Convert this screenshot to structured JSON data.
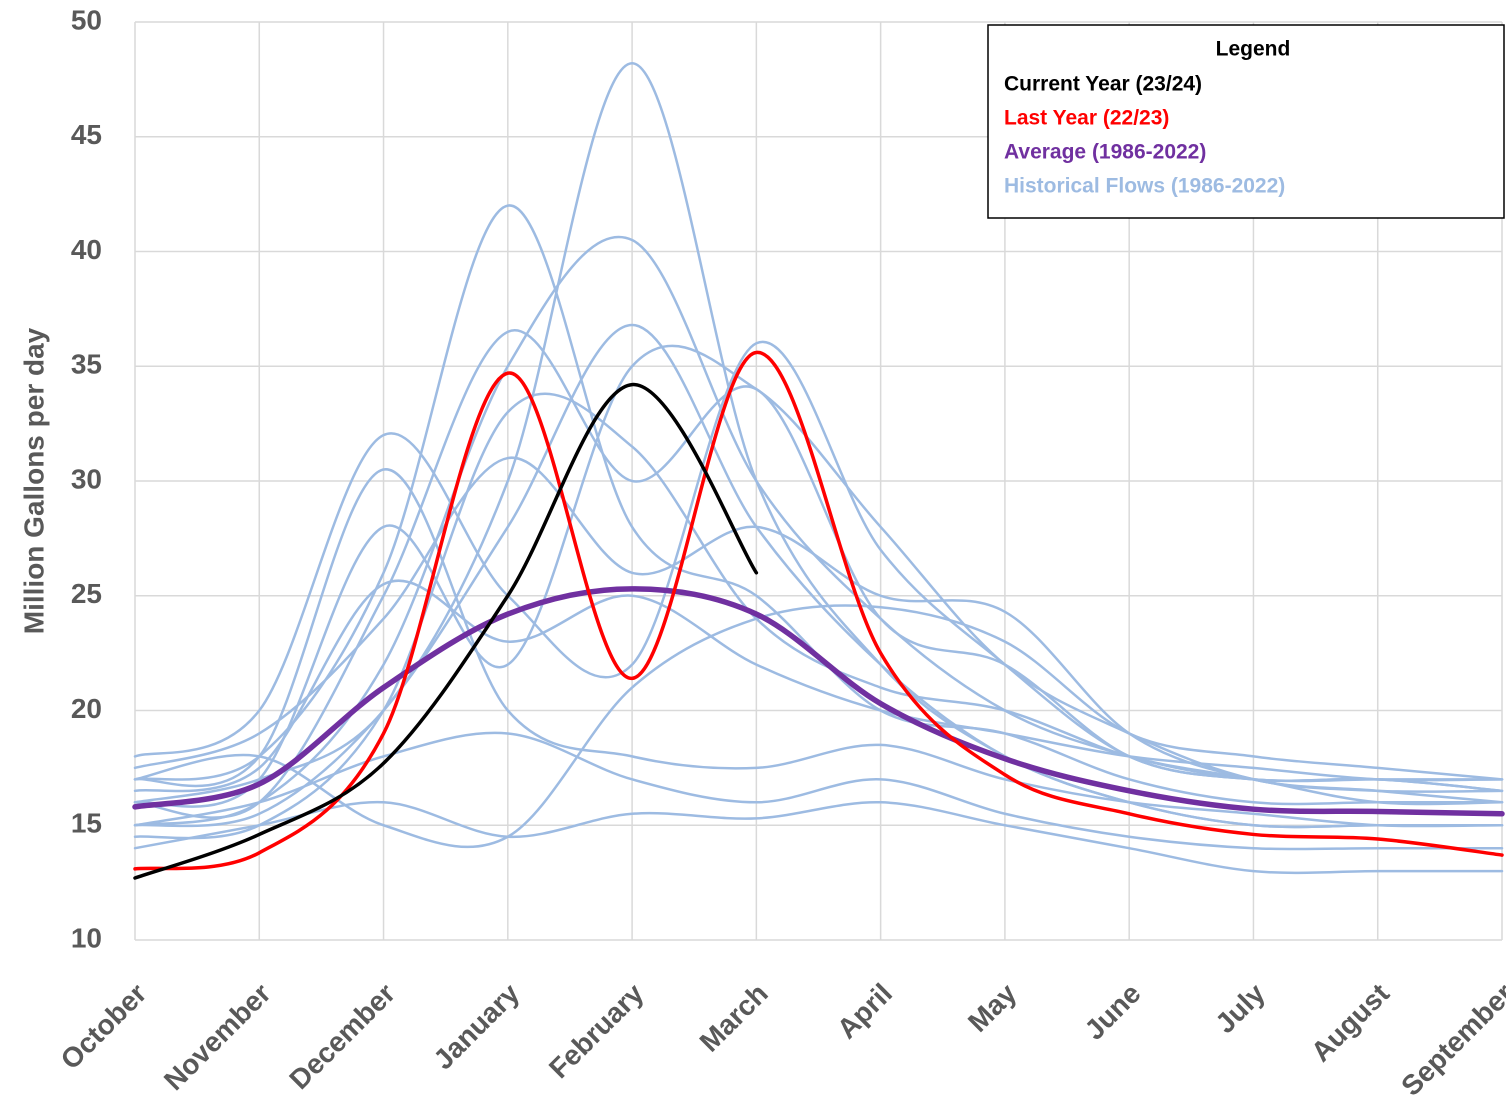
{
  "chart_data": {
    "type": "line",
    "y_label": "Million Gallons per day",
    "legend_title": "Legend",
    "legend_position": "top-right",
    "grid": true,
    "categories": [
      "October",
      "November",
      "December",
      "January",
      "February",
      "March",
      "April",
      "May",
      "June",
      "July",
      "August",
      "September"
    ],
    "ylim": [
      10,
      50
    ],
    "yticks": [
      10,
      15,
      20,
      25,
      30,
      35,
      40,
      45,
      50
    ],
    "series": [
      {
        "name": "Current Year (23/24)",
        "color": "#000000",
        "values": [
          12.7,
          14.6,
          17.7,
          25,
          34.2,
          26,
          null,
          null,
          null,
          null,
          null,
          null
        ]
      },
      {
        "name": "Last Year (22/23)",
        "color": "#ff0000",
        "values": [
          13.1,
          13.8,
          19,
          34.7,
          21.4,
          35.6,
          22.5,
          17.2,
          15.5,
          14.6,
          14.4,
          13.7
        ]
      },
      {
        "name": "Average (1986-2022)",
        "color": "#7030a0",
        "values": [
          15.8,
          16.8,
          21,
          24.2,
          25.3,
          24.2,
          20.3,
          17.9,
          16.5,
          15.7,
          15.6,
          15.5
        ]
      },
      {
        "name": "Historical Flows (1986-2022)",
        "color": "#9dbbe2",
        "values": [
          [
            16,
            17,
            20,
            30,
            48.2,
            30,
            22,
            18,
            16,
            15,
            15,
            15
          ],
          [
            17,
            18,
            26,
            42,
            28,
            25,
            20,
            19,
            17,
            16,
            16,
            16
          ],
          [
            15,
            16,
            22,
            35,
            40.5,
            30,
            24,
            20,
            18,
            17,
            17,
            16.5
          ],
          [
            17,
            18,
            30.5,
            20,
            18,
            17.5,
            18.5,
            17,
            16,
            15.5,
            15,
            15
          ],
          [
            16,
            16,
            25,
            36.5,
            30,
            34,
            24,
            22,
            18,
            17,
            17,
            16.5
          ],
          [
            15,
            15.5,
            20,
            28,
            36.8,
            28,
            22,
            18,
            16,
            15,
            15,
            15
          ],
          [
            18,
            20,
            32,
            25,
            22,
            36,
            27,
            22,
            18,
            17,
            17,
            17
          ],
          [
            16,
            17,
            28,
            22,
            35,
            34,
            28,
            22,
            19,
            17,
            16.5,
            16.5
          ],
          [
            14,
            15,
            16,
            14.5,
            15.5,
            15.3,
            16,
            15,
            14,
            13,
            13,
            13
          ],
          [
            17.5,
            19,
            24,
            31,
            26,
            28,
            25,
            24.3,
            19,
            17,
            16.5,
            16
          ],
          [
            15,
            16,
            18,
            19,
            17,
            16,
            17,
            15.5,
            14.5,
            14,
            14,
            14
          ],
          [
            16.5,
            17.5,
            25.5,
            23,
            25,
            22,
            20,
            19,
            18,
            17.5,
            17,
            17
          ],
          [
            14.5,
            15,
            20,
            33,
            31.5,
            24,
            21,
            20,
            18,
            17,
            16,
            16
          ],
          [
            17,
            18,
            15,
            14.5,
            21,
            24,
            24.5,
            23,
            19,
            18,
            17.5,
            17
          ]
        ]
      }
    ]
  }
}
